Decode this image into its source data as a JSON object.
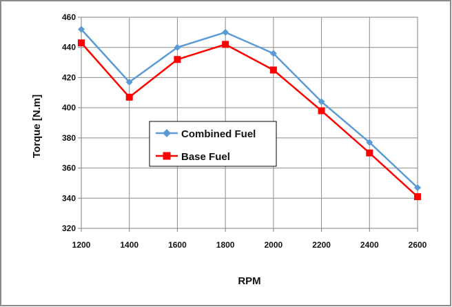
{
  "chart_data": {
    "type": "line",
    "title": "",
    "xlabel": "RPM",
    "ylabel": "Torque [N.m]",
    "x": [
      1200,
      1400,
      1600,
      1800,
      2000,
      2200,
      2400,
      2600
    ],
    "xlim": [
      1200,
      2600
    ],
    "ylim": [
      320,
      460
    ],
    "x_ticks": [
      "1200",
      "1400",
      "1600",
      "1800",
      "2000",
      "2200",
      "2400",
      "2600"
    ],
    "y_ticks": [
      "320",
      "340",
      "360",
      "380",
      "400",
      "420",
      "440",
      "460"
    ],
    "grid": true,
    "legend_placement": "center-left",
    "series": [
      {
        "name": "Combined Fuel",
        "color": "#5B9BD5",
        "marker": "diamond",
        "values": [
          452,
          417,
          440,
          450,
          436,
          404,
          377,
          347
        ]
      },
      {
        "name": "Base Fuel",
        "color": "#FF0000",
        "marker": "square",
        "values": [
          443,
          407,
          432,
          442,
          425,
          398,
          370,
          341
        ]
      }
    ]
  }
}
